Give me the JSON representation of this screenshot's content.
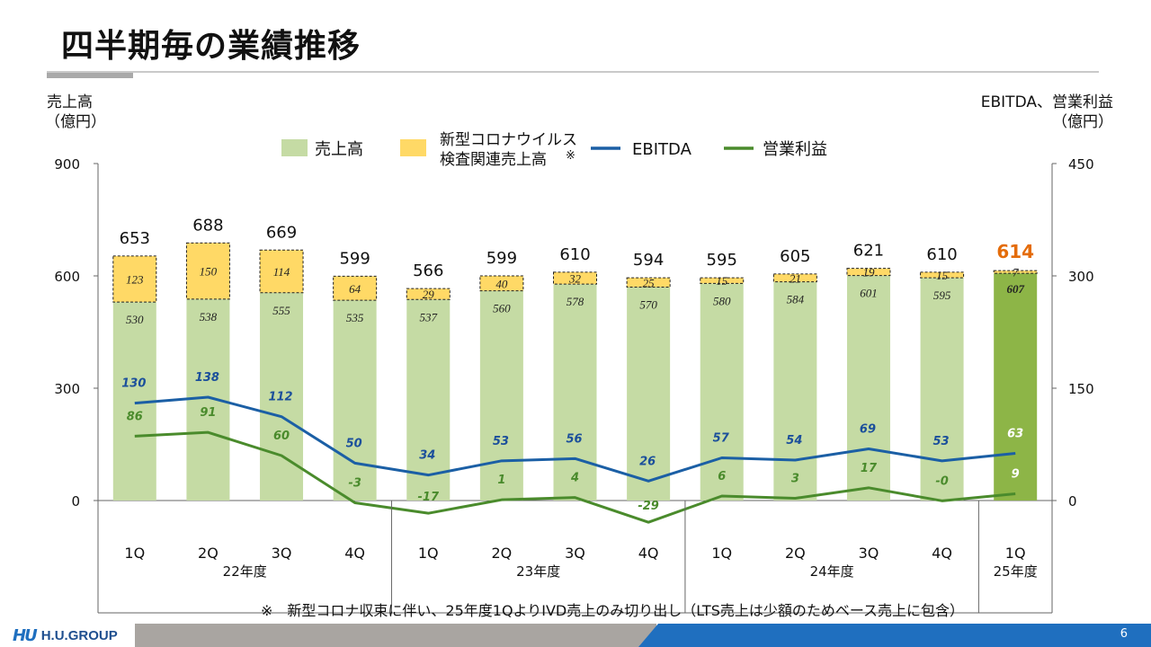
{
  "page": {
    "title": "四半期毎の業績推移",
    "left_axis_title_1": "売上高",
    "left_axis_title_2": "（億円）",
    "right_axis_title_1": "EBITDA、営業利益",
    "right_axis_title_2": "（億円）",
    "note": "※　新型コロナ収束に伴い、25年度1QよりIVD売上のみ切り出し（LTS売上は少額のためベース売上に包含）",
    "page_number": "6",
    "logo_mark": "HU",
    "logo_text": "H.U.GROUP"
  },
  "legend": {
    "sales": "売上高",
    "covid_line1": "新型コロナウイルス",
    "covid_line2": "検査関連売上高",
    "covid_note_mark": "※",
    "ebitda": "EBITDA",
    "op_income": "営業利益"
  },
  "colors": {
    "sales": "#c5dba4",
    "sales_highlight": "#8db547",
    "covid": "#ffd966",
    "ebitda": "#1b5fa5",
    "op_income": "#4a8b2c",
    "total_highlight": "#e46c0a",
    "ebitda_label": "#1b4f9b",
    "op_label": "#4a8b2c"
  },
  "chart_data": {
    "type": "bar",
    "stacked": true,
    "left_axis": {
      "min": 0,
      "max": 900,
      "ticks": [
        0,
        300,
        600,
        900
      ]
    },
    "right_axis": {
      "min": 0,
      "max": 450,
      "ticks": [
        0,
        150,
        300,
        450
      ]
    },
    "categories": [
      "1Q",
      "2Q",
      "3Q",
      "4Q",
      "1Q",
      "2Q",
      "3Q",
      "4Q",
      "1Q",
      "2Q",
      "3Q",
      "4Q",
      "1Q"
    ],
    "fiscal_groups": [
      {
        "label": "22年度",
        "count": 4
      },
      {
        "label": "23年度",
        "count": 4
      },
      {
        "label": "24年度",
        "count": 4
      },
      {
        "label": "25年度",
        "count": 1
      }
    ],
    "series": [
      {
        "name": "売上高",
        "type": "bar",
        "axis": "left",
        "values": [
          530,
          538,
          555,
          535,
          537,
          560,
          578,
          570,
          580,
          584,
          601,
          595,
          607
        ]
      },
      {
        "name": "新型コロナウイルス検査関連売上高",
        "type": "bar",
        "axis": "left",
        "values": [
          123,
          150,
          114,
          64,
          29,
          40,
          32,
          25,
          15,
          21,
          19,
          15,
          7
        ]
      },
      {
        "name": "EBITDA",
        "type": "line",
        "axis": "right",
        "values": [
          130,
          138,
          112,
          50,
          34,
          53,
          56,
          26,
          57,
          54,
          69,
          53,
          63
        ]
      },
      {
        "name": "営業利益",
        "type": "line",
        "axis": "right",
        "values": [
          86,
          91,
          60,
          -3,
          -17,
          1,
          4,
          -29,
          6,
          3,
          17,
          -0.4,
          9
        ]
      }
    ],
    "op_income_labels": [
      "86",
      "91",
      "60",
      "-3",
      "-17",
      "1",
      "4",
      "-29",
      "6",
      "3",
      "17",
      "-0",
      "9"
    ],
    "totals": [
      653,
      688,
      669,
      599,
      566,
      599,
      610,
      594,
      595,
      605,
      621,
      610,
      614
    ],
    "highlight_index": 12
  }
}
